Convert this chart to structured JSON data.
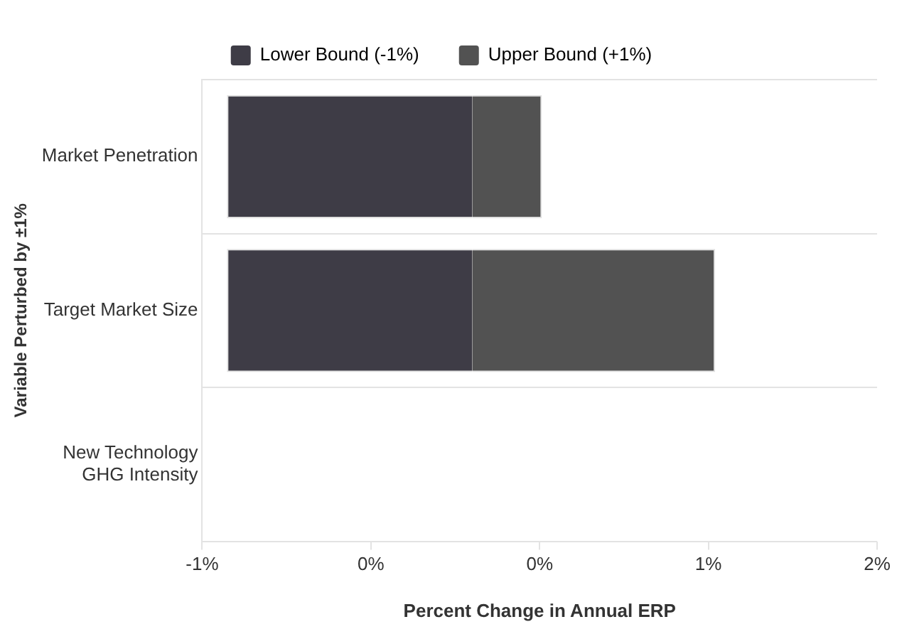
{
  "chart_data": {
    "type": "bar",
    "orientation": "horizontal",
    "stacked": true,
    "xlabel": "Percent Change in Annual ERP",
    "ylabel": "Variable Perturbed by ±1%",
    "categories": [
      "Market Penetration",
      "Target Market Size",
      "New Technology GHG Intensity"
    ],
    "series": [
      {
        "name": "Lower Bound (-1%)",
        "color": "#3e3c46",
        "values": [
          -1.09,
          -1.09,
          null
        ]
      },
      {
        "name": "Upper Bound (+1%)",
        "color": "#525252",
        "values": [
          0.31,
          1.08,
          null
        ]
      }
    ],
    "xlim": [
      -1.2,
      1.8
    ],
    "xticks": [
      {
        "value": -1.2,
        "label": "-1%"
      },
      {
        "value": -0.45,
        "label": "0%"
      },
      {
        "value": 0.3,
        "label": "0%"
      },
      {
        "value": 1.05,
        "label": "1%"
      },
      {
        "value": 1.8,
        "label": "2%"
      }
    ],
    "grid": "y",
    "legend": "top"
  }
}
